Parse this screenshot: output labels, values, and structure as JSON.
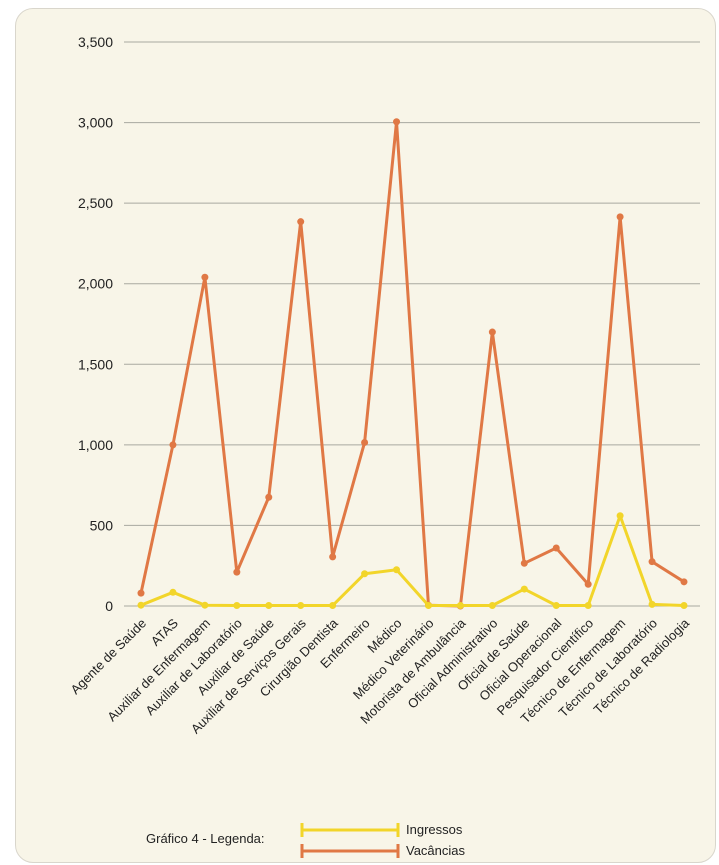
{
  "chart_data": {
    "type": "line",
    "title": "",
    "xlabel": "",
    "ylabel": "",
    "ylim": [
      0,
      3500
    ],
    "yticks": [
      0,
      500,
      1000,
      1500,
      2000,
      2500,
      3000,
      3500
    ],
    "ytick_labels": [
      "0",
      "500",
      "1,000",
      "1,500",
      "2,000",
      "2,500",
      "3,000",
      "3,500"
    ],
    "grid": true,
    "categories": [
      "Agente de Saúde",
      "ATAS",
      "Auxiliar de Enfermagem",
      "Auxiliar de Laboratório",
      "Auxiliar de Saúde",
      "Auxiliar de Serviços Gerais",
      "Cirurgião Dentista",
      "Enfermeiro",
      "Médico",
      "Médico Veterinário",
      "Motorista de Ambulância",
      "Oficial Administrativo",
      "Oficial de Saúde",
      "Oficial Operacional",
      "Pesquisador Científico",
      "Técnico de Enfermagem",
      "Técnico de Laboratório",
      "Técnico de Radiologia"
    ],
    "series": [
      {
        "name": "Ingressos",
        "color": "#f2d52a",
        "values": [
          5,
          85,
          5,
          3,
          3,
          3,
          3,
          200,
          225,
          3,
          3,
          3,
          105,
          3,
          3,
          560,
          10,
          3
        ]
      },
      {
        "name": "Vacâncias",
        "color": "#e07845",
        "values": [
          80,
          1000,
          2040,
          210,
          675,
          2385,
          305,
          1015,
          3005,
          5,
          0,
          1700,
          265,
          360,
          135,
          2415,
          275,
          150
        ]
      }
    ],
    "legend": {
      "title": "Gráfico 4 - Legenda:",
      "placement": "bottom"
    }
  }
}
